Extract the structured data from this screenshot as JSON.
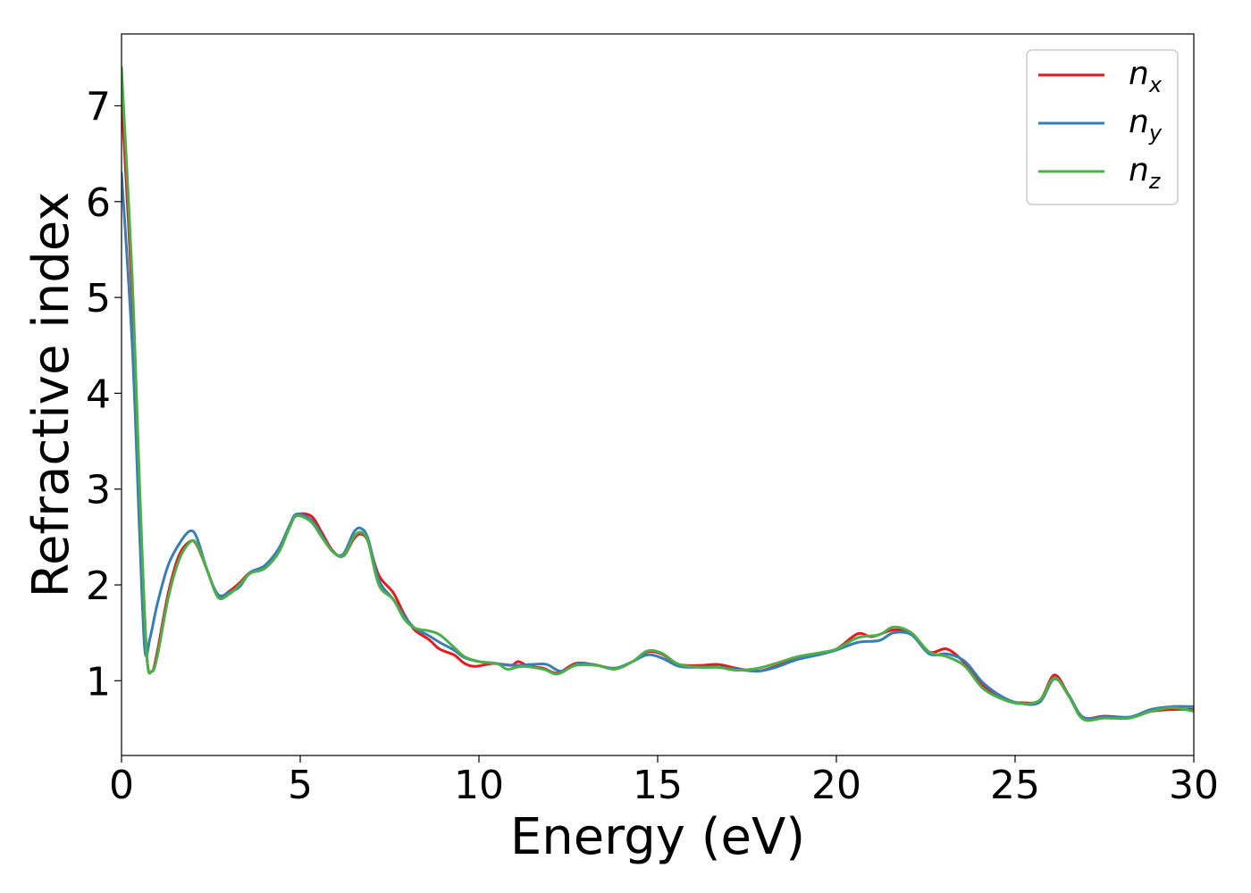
{
  "chart_data": {
    "type": "line",
    "title": "",
    "xlabel": "Energy (eV)",
    "ylabel": "Refractive index",
    "xlim": [
      0,
      30
    ],
    "ylim": [
      0.22,
      7.75
    ],
    "xticks": [
      0,
      5,
      10,
      15,
      20,
      25,
      30
    ],
    "yticks": [
      1,
      2,
      3,
      4,
      5,
      6,
      7
    ],
    "grid": false,
    "legend_position": "top-right",
    "series": [
      {
        "name": "n",
        "subscript": "x",
        "color": "#e41a1c",
        "points": [
          [
            0,
            7.1
          ],
          [
            0.3,
            5.0
          ],
          [
            0.5,
            3.0
          ],
          [
            0.7,
            1.3
          ],
          [
            0.85,
            1.1
          ],
          [
            1.0,
            1.3
          ],
          [
            1.3,
            1.9
          ],
          [
            1.6,
            2.3
          ],
          [
            1.9,
            2.45
          ],
          [
            2.1,
            2.42
          ],
          [
            2.4,
            2.15
          ],
          [
            2.7,
            1.88
          ],
          [
            3.0,
            1.93
          ],
          [
            3.3,
            2.02
          ],
          [
            3.6,
            2.13
          ],
          [
            4.0,
            2.18
          ],
          [
            4.4,
            2.35
          ],
          [
            4.7,
            2.6
          ],
          [
            4.9,
            2.73
          ],
          [
            5.3,
            2.72
          ],
          [
            5.6,
            2.55
          ],
          [
            5.9,
            2.36
          ],
          [
            6.2,
            2.3
          ],
          [
            6.5,
            2.48
          ],
          [
            6.7,
            2.53
          ],
          [
            6.9,
            2.45
          ],
          [
            7.2,
            2.1
          ],
          [
            7.6,
            1.92
          ],
          [
            7.9,
            1.7
          ],
          [
            8.2,
            1.53
          ],
          [
            8.6,
            1.43
          ],
          [
            8.9,
            1.33
          ],
          [
            9.3,
            1.27
          ],
          [
            9.6,
            1.18
          ],
          [
            9.9,
            1.15
          ],
          [
            10.4,
            1.18
          ],
          [
            10.9,
            1.16
          ],
          [
            11.1,
            1.2
          ],
          [
            11.4,
            1.15
          ],
          [
            11.8,
            1.13
          ],
          [
            12.2,
            1.08
          ],
          [
            12.7,
            1.18
          ],
          [
            13.2,
            1.17
          ],
          [
            13.8,
            1.13
          ],
          [
            14.3,
            1.2
          ],
          [
            14.7,
            1.3
          ],
          [
            15.1,
            1.28
          ],
          [
            15.6,
            1.17
          ],
          [
            16.2,
            1.16
          ],
          [
            16.7,
            1.17
          ],
          [
            17.2,
            1.13
          ],
          [
            17.8,
            1.1
          ],
          [
            18.3,
            1.15
          ],
          [
            18.9,
            1.23
          ],
          [
            19.5,
            1.28
          ],
          [
            20.0,
            1.33
          ],
          [
            20.6,
            1.49
          ],
          [
            21.0,
            1.46
          ],
          [
            21.6,
            1.53
          ],
          [
            22.1,
            1.49
          ],
          [
            22.6,
            1.3
          ],
          [
            23.1,
            1.33
          ],
          [
            23.6,
            1.18
          ],
          [
            24.1,
            0.95
          ],
          [
            24.7,
            0.8
          ],
          [
            25.2,
            0.77
          ],
          [
            25.7,
            0.8
          ],
          [
            26.1,
            1.06
          ],
          [
            26.5,
            0.85
          ],
          [
            26.9,
            0.62
          ],
          [
            27.5,
            0.63
          ],
          [
            28.2,
            0.62
          ],
          [
            28.8,
            0.68
          ],
          [
            29.4,
            0.7
          ],
          [
            30.0,
            0.7
          ]
        ]
      },
      {
        "name": "n",
        "subscript": "y",
        "color": "#377eb8",
        "points": [
          [
            0,
            6.3
          ],
          [
            0.3,
            4.5
          ],
          [
            0.5,
            2.6
          ],
          [
            0.65,
            1.33
          ],
          [
            0.8,
            1.45
          ],
          [
            1.0,
            1.8
          ],
          [
            1.3,
            2.2
          ],
          [
            1.6,
            2.42
          ],
          [
            1.9,
            2.56
          ],
          [
            2.1,
            2.5
          ],
          [
            2.4,
            2.15
          ],
          [
            2.7,
            1.9
          ],
          [
            3.0,
            1.92
          ],
          [
            3.3,
            1.98
          ],
          [
            3.6,
            2.13
          ],
          [
            4.0,
            2.2
          ],
          [
            4.4,
            2.38
          ],
          [
            4.7,
            2.62
          ],
          [
            4.9,
            2.74
          ],
          [
            5.3,
            2.68
          ],
          [
            5.6,
            2.52
          ],
          [
            5.9,
            2.35
          ],
          [
            6.2,
            2.32
          ],
          [
            6.5,
            2.55
          ],
          [
            6.7,
            2.59
          ],
          [
            6.9,
            2.48
          ],
          [
            7.2,
            2.05
          ],
          [
            7.6,
            1.85
          ],
          [
            7.9,
            1.68
          ],
          [
            8.2,
            1.55
          ],
          [
            8.6,
            1.47
          ],
          [
            8.9,
            1.4
          ],
          [
            9.3,
            1.32
          ],
          [
            9.6,
            1.24
          ],
          [
            10.0,
            1.2
          ],
          [
            10.5,
            1.18
          ],
          [
            11.0,
            1.16
          ],
          [
            11.5,
            1.17
          ],
          [
            11.9,
            1.17
          ],
          [
            12.3,
            1.1
          ],
          [
            12.8,
            1.18
          ],
          [
            13.3,
            1.16
          ],
          [
            13.8,
            1.13
          ],
          [
            14.3,
            1.2
          ],
          [
            14.7,
            1.27
          ],
          [
            15.1,
            1.24
          ],
          [
            15.6,
            1.15
          ],
          [
            16.2,
            1.14
          ],
          [
            16.7,
            1.14
          ],
          [
            17.2,
            1.12
          ],
          [
            17.8,
            1.1
          ],
          [
            18.3,
            1.14
          ],
          [
            18.9,
            1.22
          ],
          [
            19.5,
            1.27
          ],
          [
            20.0,
            1.32
          ],
          [
            20.6,
            1.4
          ],
          [
            21.2,
            1.42
          ],
          [
            21.6,
            1.5
          ],
          [
            22.1,
            1.48
          ],
          [
            22.6,
            1.28
          ],
          [
            23.1,
            1.28
          ],
          [
            23.6,
            1.2
          ],
          [
            24.1,
            0.98
          ],
          [
            24.7,
            0.82
          ],
          [
            25.2,
            0.76
          ],
          [
            25.7,
            0.78
          ],
          [
            26.1,
            1.02
          ],
          [
            26.5,
            0.85
          ],
          [
            26.9,
            0.62
          ],
          [
            27.5,
            0.62
          ],
          [
            28.2,
            0.62
          ],
          [
            28.8,
            0.7
          ],
          [
            29.4,
            0.73
          ],
          [
            30.0,
            0.73
          ]
        ]
      },
      {
        "name": "n",
        "subscript": "z",
        "color": "#4daf4a",
        "points": [
          [
            0,
            7.4
          ],
          [
            0.3,
            5.2
          ],
          [
            0.5,
            3.1
          ],
          [
            0.7,
            1.3
          ],
          [
            0.85,
            1.1
          ],
          [
            1.0,
            1.25
          ],
          [
            1.3,
            1.85
          ],
          [
            1.6,
            2.25
          ],
          [
            1.9,
            2.44
          ],
          [
            2.1,
            2.43
          ],
          [
            2.4,
            2.15
          ],
          [
            2.7,
            1.87
          ],
          [
            3.0,
            1.9
          ],
          [
            3.3,
            2.0
          ],
          [
            3.6,
            2.12
          ],
          [
            4.0,
            2.17
          ],
          [
            4.4,
            2.34
          ],
          [
            4.7,
            2.6
          ],
          [
            4.9,
            2.72
          ],
          [
            5.3,
            2.66
          ],
          [
            5.6,
            2.5
          ],
          [
            5.9,
            2.35
          ],
          [
            6.2,
            2.3
          ],
          [
            6.5,
            2.5
          ],
          [
            6.7,
            2.55
          ],
          [
            6.9,
            2.45
          ],
          [
            7.2,
            2.0
          ],
          [
            7.6,
            1.85
          ],
          [
            7.9,
            1.65
          ],
          [
            8.2,
            1.55
          ],
          [
            8.6,
            1.52
          ],
          [
            8.9,
            1.48
          ],
          [
            9.3,
            1.35
          ],
          [
            9.6,
            1.25
          ],
          [
            10.0,
            1.2
          ],
          [
            10.5,
            1.18
          ],
          [
            10.8,
            1.12
          ],
          [
            11.2,
            1.15
          ],
          [
            11.8,
            1.12
          ],
          [
            12.2,
            1.07
          ],
          [
            12.7,
            1.16
          ],
          [
            13.3,
            1.16
          ],
          [
            13.8,
            1.12
          ],
          [
            14.3,
            1.2
          ],
          [
            14.7,
            1.31
          ],
          [
            15.1,
            1.29
          ],
          [
            15.6,
            1.17
          ],
          [
            16.2,
            1.14
          ],
          [
            16.7,
            1.14
          ],
          [
            17.2,
            1.11
          ],
          [
            17.8,
            1.13
          ],
          [
            18.3,
            1.18
          ],
          [
            18.9,
            1.25
          ],
          [
            19.5,
            1.29
          ],
          [
            20.0,
            1.33
          ],
          [
            20.6,
            1.45
          ],
          [
            21.2,
            1.48
          ],
          [
            21.6,
            1.56
          ],
          [
            22.1,
            1.5
          ],
          [
            22.6,
            1.3
          ],
          [
            23.1,
            1.25
          ],
          [
            23.6,
            1.15
          ],
          [
            24.1,
            0.92
          ],
          [
            24.7,
            0.8
          ],
          [
            25.2,
            0.76
          ],
          [
            25.7,
            0.8
          ],
          [
            26.1,
            1.03
          ],
          [
            26.5,
            0.84
          ],
          [
            26.9,
            0.6
          ],
          [
            27.5,
            0.61
          ],
          [
            28.2,
            0.61
          ],
          [
            28.8,
            0.68
          ],
          [
            29.4,
            0.72
          ],
          [
            30.0,
            0.68
          ]
        ]
      }
    ]
  }
}
